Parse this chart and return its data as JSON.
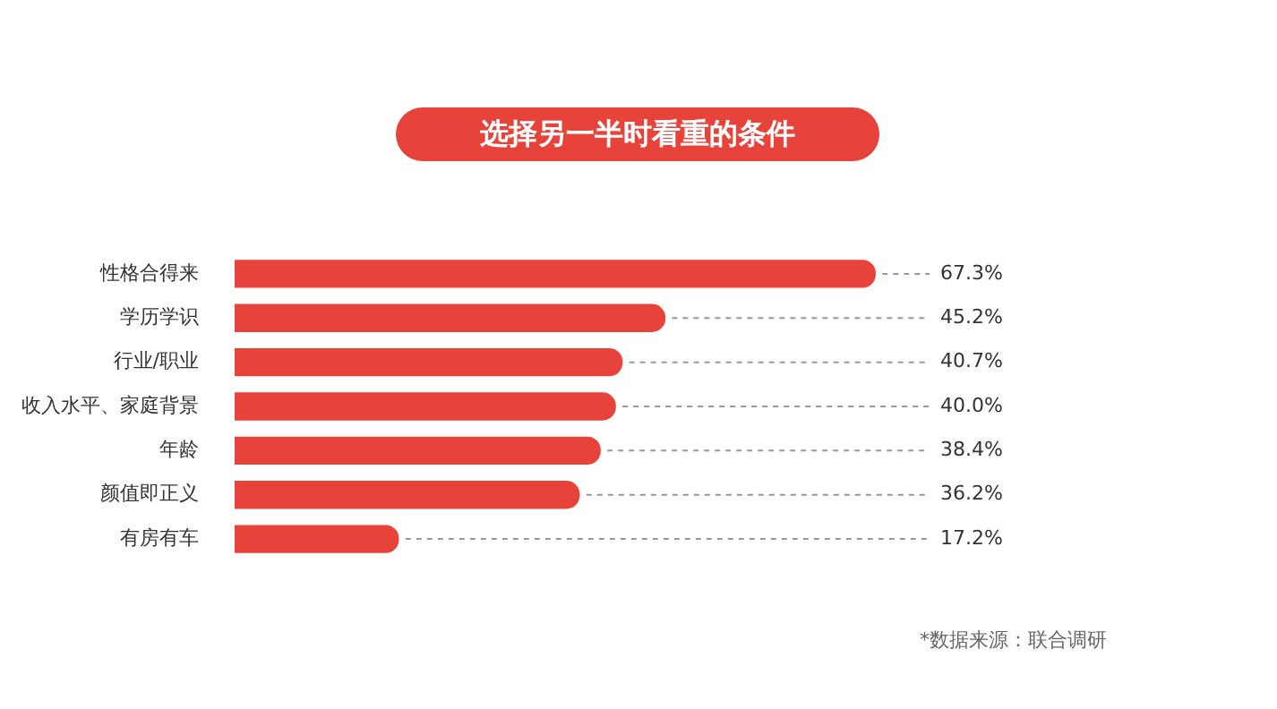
{
  "chart_data": {
    "type": "bar",
    "orientation": "horizontal",
    "title": "选择另一半时看重的条件",
    "categories": [
      "性格合得来",
      "学历学识",
      "行业/职业",
      "收入水平、家庭背景",
      "年龄",
      "颜值即正义",
      "有房有车"
    ],
    "values": [
      67.3,
      45.2,
      40.7,
      40.0,
      38.4,
      36.2,
      17.2
    ],
    "value_labels": [
      "67.3%",
      "45.2%",
      "40.7%",
      "40.0%",
      "38.4%",
      "36.2%",
      "17.2%"
    ],
    "color": "#e8433a",
    "legend": false,
    "annotations": [
      "*数据来源：联合调研"
    ]
  }
}
